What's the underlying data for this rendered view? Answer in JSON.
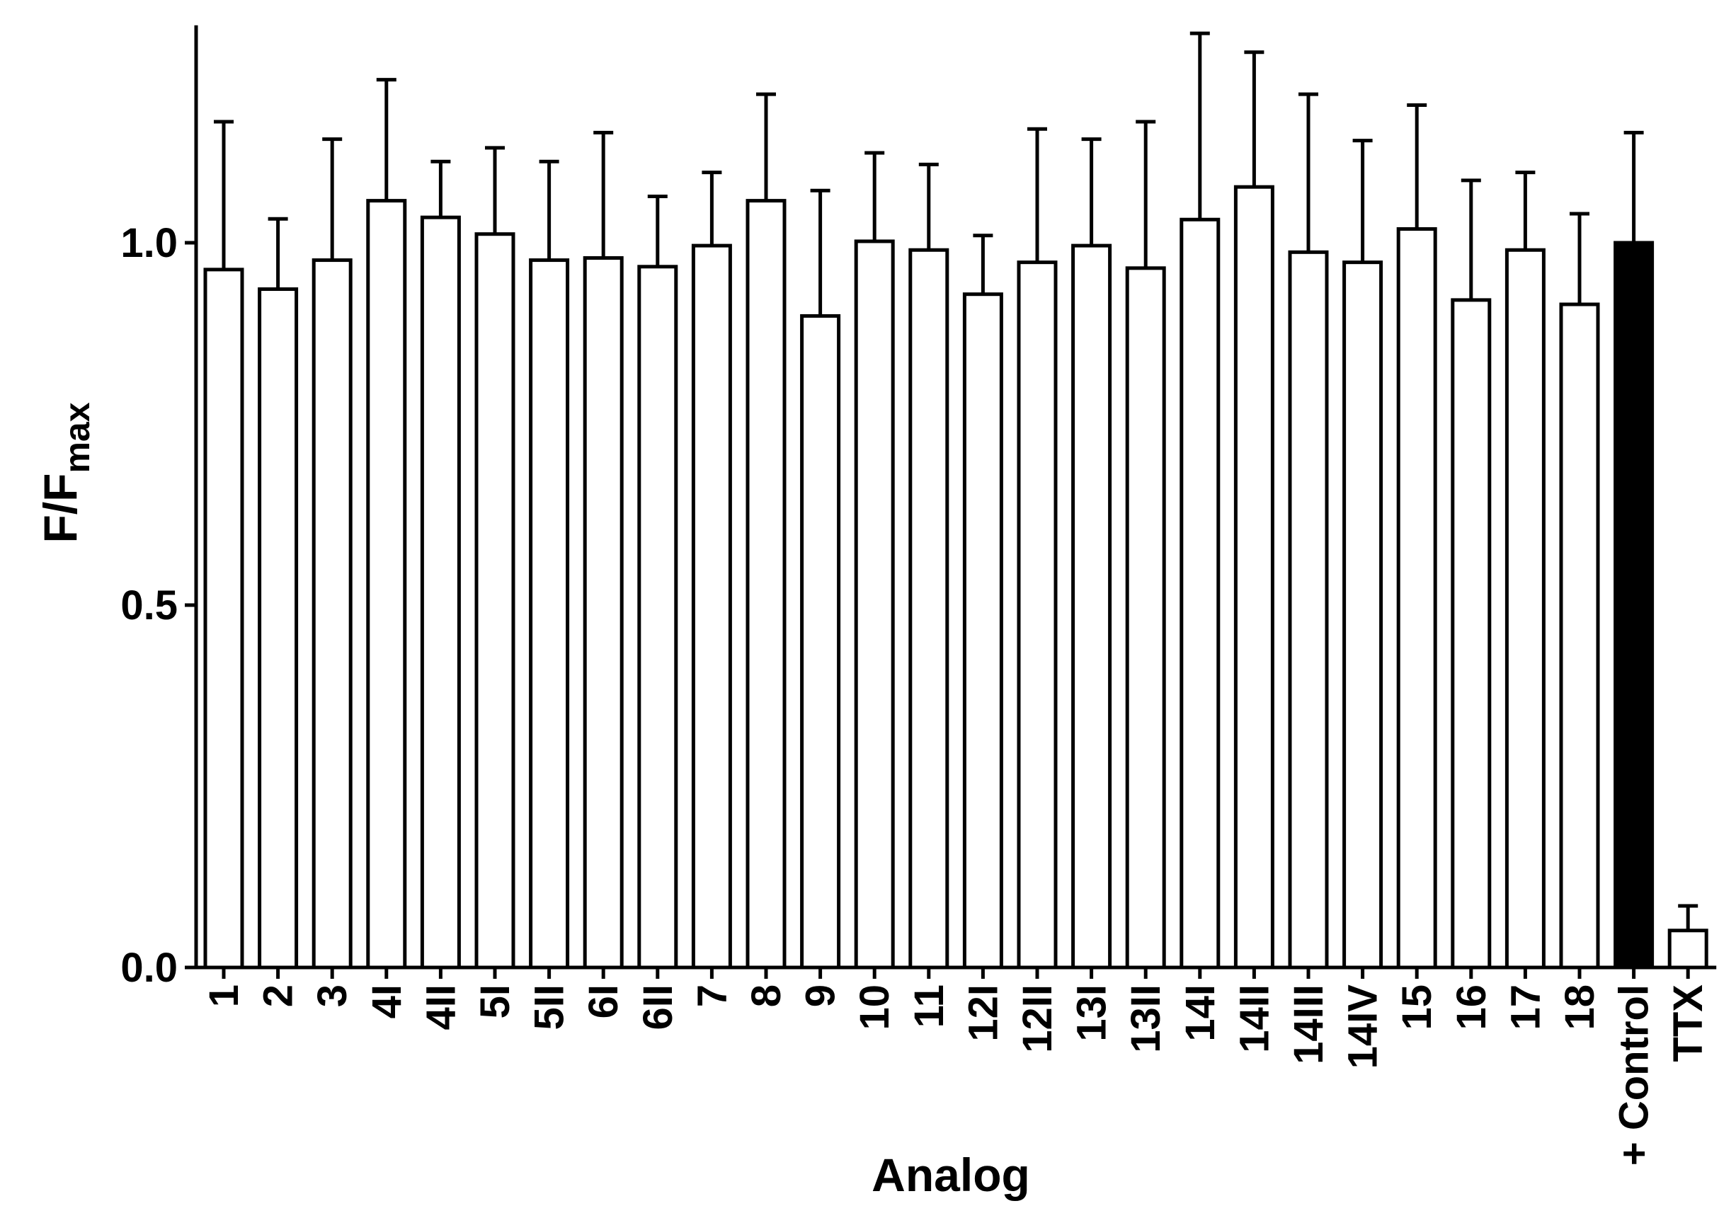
{
  "chart_data": {
    "type": "bar",
    "xlabel": "Analog",
    "ylabel_main": "F/F",
    "ylabel_sub": "max",
    "ylim": [
      0,
      1.3
    ],
    "yticks": [
      0.0,
      0.5,
      1.0
    ],
    "ytick_labels": [
      "0.0",
      "0.5",
      "1.0"
    ],
    "grid": false,
    "legend": "none",
    "colors": {
      "default_fill": "#ffffff",
      "highlight_fill": "#000000",
      "stroke": "#000000"
    },
    "categories": [
      "1",
      "2",
      "3",
      "4I",
      "4II",
      "5I",
      "5II",
      "6I",
      "6II",
      "7",
      "8",
      "9",
      "10",
      "11",
      "12I",
      "12II",
      "13I",
      "13II",
      "14I",
      "14II",
      "14III",
      "14IV",
      "15",
      "16",
      "17",
      "18",
      "+ Control",
      "TTX"
    ],
    "values": [
      0.963,
      0.936,
      0.976,
      1.058,
      1.035,
      1.012,
      0.976,
      0.979,
      0.967,
      0.996,
      1.058,
      0.899,
      1.002,
      0.99,
      0.929,
      0.973,
      0.996,
      0.965,
      1.032,
      1.077,
      0.987,
      0.973,
      1.019,
      0.921,
      0.99,
      0.915,
      1.0,
      0.051
    ],
    "error_upper": [
      1.167,
      1.033,
      1.143,
      1.225,
      1.112,
      1.131,
      1.112,
      1.152,
      1.064,
      1.097,
      1.205,
      1.072,
      1.124,
      1.108,
      1.01,
      1.157,
      1.143,
      1.167,
      1.289,
      1.263,
      1.205,
      1.141,
      1.19,
      1.086,
      1.097,
      1.04,
      1.152,
      0.085
    ],
    "highlighted": [
      "+ Control"
    ]
  }
}
